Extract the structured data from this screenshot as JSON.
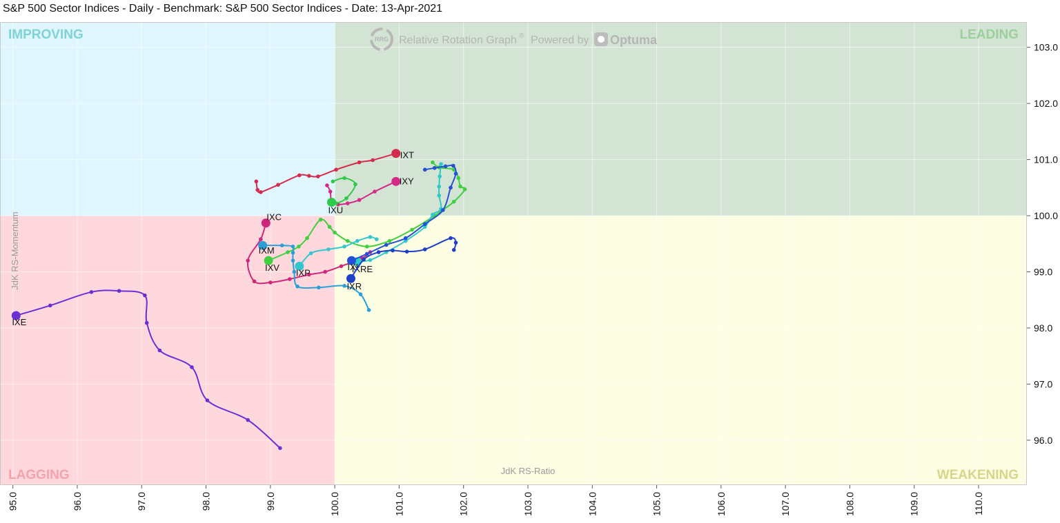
{
  "header": {
    "title": "S&P 500 Sector Indices - Daily - Benchmark: S&P 500 Sector Indices - Date: 13-Apr-2021"
  },
  "watermark": {
    "logo": "RRG",
    "text": "Relative Rotation Graph",
    "reg": "®",
    "powered": "Powered by",
    "brand": "Optuma"
  },
  "quadrants": {
    "improving": "IMPROVING",
    "leading": "LEADING",
    "lagging": "LAGGING",
    "weakening": "WEAKENING"
  },
  "colors": {
    "improving": "#dff6fe",
    "leading": "#d3e4d4",
    "lagging": "#fed8dc",
    "weakening": "#fdfde4",
    "improving_text": "#7fd3d6",
    "leading_text": "#9ccf9c",
    "lagging_text": "#f5a3ab",
    "weakening_text": "#d6d68a"
  },
  "chart_data": {
    "type": "scatter",
    "title": "S&P 500 Sector Indices - Daily - Benchmark: S&P 500 Sector Indices - Date: 13-Apr-2021",
    "xlabel": "JdK RS-Ratio",
    "ylabel": "JdK RS-Momentum",
    "xlim": [
      94.8,
      110.75
    ],
    "ylim": [
      95.2,
      103.45
    ],
    "center": [
      100,
      100
    ],
    "xticks": [
      "95.0",
      "96.0",
      "97.0",
      "98.0",
      "99.0",
      "100.0",
      "101.0",
      "102.0",
      "103.0",
      "104.0",
      "105.0",
      "106.0",
      "107.0",
      "108.0",
      "109.0",
      "110.0"
    ],
    "xtick_values": [
      95,
      96,
      97,
      98,
      99,
      100,
      101,
      102,
      103,
      104,
      105,
      106,
      107,
      108,
      109,
      110
    ],
    "yticks": [
      "96.0",
      "97.0",
      "98.0",
      "99.0",
      "100.0",
      "101.0",
      "102.0",
      "103.0"
    ],
    "ytick_values": [
      96,
      97,
      98,
      99,
      100,
      101,
      102,
      103
    ],
    "series": [
      {
        "name": "IXT",
        "color": "#d42a4c",
        "points": [
          [
            98.78,
            100.61
          ],
          [
            98.8,
            100.46
          ],
          [
            98.85,
            100.42
          ],
          [
            99.12,
            100.55
          ],
          [
            99.45,
            100.72
          ],
          [
            99.6,
            100.71
          ],
          [
            99.74,
            100.7
          ],
          [
            100.02,
            100.82
          ],
          [
            100.38,
            100.95
          ],
          [
            100.59,
            100.99
          ],
          [
            100.95,
            101.11
          ]
        ]
      },
      {
        "name": "IXY",
        "color": "#d32a8a",
        "points": [
          [
            99.88,
            100.54
          ],
          [
            99.93,
            100.43
          ],
          [
            99.95,
            100.24
          ],
          [
            100.05,
            100.2
          ],
          [
            100.2,
            100.22
          ],
          [
            100.38,
            100.28
          ],
          [
            100.62,
            100.43
          ],
          [
            100.95,
            100.61
          ]
        ]
      },
      {
        "name": "IXC",
        "color": "#d0267a",
        "points": [
          [
            100.55,
            99.35
          ],
          [
            100.42,
            99.24
          ],
          [
            100.1,
            99.1
          ],
          [
            99.85,
            99.0
          ],
          [
            99.6,
            98.95
          ],
          [
            99.3,
            98.87
          ],
          [
            99.0,
            98.81
          ],
          [
            98.75,
            98.83
          ],
          [
            98.65,
            99.2
          ],
          [
            98.85,
            99.58
          ],
          [
            98.93,
            99.87
          ]
        ]
      },
      {
        "name": "IXV",
        "color": "#3fcf3f",
        "points": [
          [
            101.52,
            100.95
          ],
          [
            101.62,
            100.86
          ],
          [
            101.85,
            100.82
          ],
          [
            101.92,
            100.67
          ],
          [
            101.95,
            100.52
          ],
          [
            102.02,
            100.47
          ],
          [
            101.85,
            100.25
          ],
          [
            101.55,
            100.0
          ],
          [
            101.2,
            99.75
          ],
          [
            100.85,
            99.55
          ],
          [
            100.5,
            99.45
          ],
          [
            100.2,
            99.55
          ],
          [
            100.0,
            99.7
          ],
          [
            99.92,
            99.8
          ],
          [
            99.78,
            99.93
          ],
          [
            99.57,
            99.6
          ],
          [
            99.44,
            99.45
          ],
          [
            99.27,
            99.35
          ],
          [
            98.97,
            99.2
          ]
        ]
      },
      {
        "name": "IXU",
        "color": "#2fc94a",
        "points": [
          [
            99.97,
            100.61
          ],
          [
            100.15,
            100.67
          ],
          [
            100.32,
            100.56
          ],
          [
            100.18,
            100.31
          ],
          [
            100.02,
            100.22
          ],
          [
            99.95,
            100.24
          ]
        ]
      },
      {
        "name": "IXRE",
        "color": "#2ec9c9",
        "points": [
          [
            101.65,
            100.92
          ],
          [
            101.63,
            100.7
          ],
          [
            101.62,
            100.52
          ],
          [
            101.62,
            100.36
          ],
          [
            101.65,
            100.12
          ],
          [
            101.52,
            100.02
          ],
          [
            101.4,
            99.8
          ],
          [
            101.1,
            99.55
          ],
          [
            100.8,
            99.35
          ],
          [
            100.55,
            99.21
          ],
          [
            100.35,
            99.18
          ]
        ]
      },
      {
        "name": "IXP",
        "color": "#34c6cf",
        "points": [
          [
            100.65,
            99.58
          ],
          [
            100.55,
            99.62
          ],
          [
            100.35,
            99.55
          ],
          [
            100.15,
            99.45
          ],
          [
            99.9,
            99.4
          ],
          [
            99.63,
            99.33
          ],
          [
            99.45,
            99.1
          ]
        ]
      },
      {
        "name": "IXM",
        "color": "#2aa0d6",
        "points": [
          [
            100.53,
            98.32
          ],
          [
            100.4,
            98.6
          ],
          [
            100.15,
            98.75
          ],
          [
            99.75,
            98.72
          ],
          [
            99.42,
            98.74
          ],
          [
            99.37,
            99.0
          ],
          [
            99.35,
            99.2
          ],
          [
            99.35,
            99.34
          ],
          [
            99.35,
            99.45
          ],
          [
            99.18,
            99.47
          ],
          [
            98.88,
            99.47
          ]
        ]
      },
      {
        "name": "IXI",
        "color": "#2550d5",
        "points": [
          [
            101.4,
            100.82
          ],
          [
            101.55,
            100.85
          ],
          [
            101.72,
            100.88
          ],
          [
            101.84,
            100.89
          ],
          [
            101.88,
            100.75
          ],
          [
            101.8,
            100.5
          ],
          [
            101.68,
            100.1
          ],
          [
            101.4,
            99.85
          ],
          [
            101.1,
            99.6
          ],
          [
            100.8,
            99.48
          ],
          [
            100.5,
            99.32
          ],
          [
            100.26,
            99.2
          ]
        ]
      },
      {
        "name": "IXR",
        "color": "#1e3fc8",
        "points": [
          [
            101.85,
            99.39
          ],
          [
            101.88,
            99.52
          ],
          [
            101.8,
            99.6
          ],
          [
            101.4,
            99.4
          ],
          [
            101.12,
            99.36
          ],
          [
            100.9,
            99.38
          ],
          [
            100.68,
            99.35
          ],
          [
            100.45,
            99.22
          ],
          [
            100.25,
            98.88
          ]
        ]
      },
      {
        "name": "IXE",
        "color": "#6c2fd5",
        "points": [
          [
            99.15,
            95.86
          ],
          [
            98.65,
            96.36
          ],
          [
            98.02,
            96.71
          ],
          [
            97.78,
            97.3
          ],
          [
            97.28,
            97.6
          ],
          [
            97.08,
            98.09
          ],
          [
            97.05,
            98.58
          ],
          [
            96.65,
            98.66
          ],
          [
            96.22,
            98.64
          ],
          [
            95.58,
            98.4
          ],
          [
            95.05,
            98.22
          ]
        ]
      }
    ]
  }
}
